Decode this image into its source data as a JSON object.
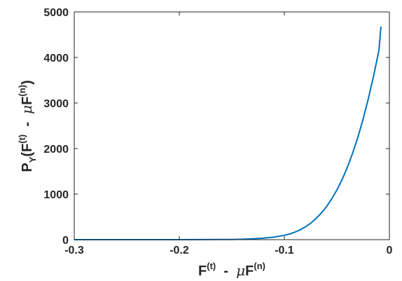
{
  "chart_data": {
    "type": "line",
    "title": "",
    "xlabel": "F(t)  -  μF(n)",
    "ylabel": "PY(F(t)  -  μF(n))",
    "xlim": [
      -0.3,
      0
    ],
    "ylim": [
      0,
      5000
    ],
    "xticks": [
      -0.3,
      -0.2,
      -0.1,
      0
    ],
    "xtick_labels": [
      "-0.3",
      "-0.2",
      "-0.1",
      "0"
    ],
    "yticks": [
      0,
      1000,
      2000,
      3000,
      4000,
      5000
    ],
    "ytick_labels": [
      "0",
      "1000",
      "2000",
      "3000",
      "4000",
      "5000"
    ],
    "grid": false,
    "legend": false,
    "line_color": "#0072BD",
    "series": [
      {
        "x": [
          -0.3,
          -0.25,
          -0.2,
          -0.18,
          -0.16,
          -0.15,
          -0.14,
          -0.13,
          -0.12,
          -0.11,
          -0.1,
          -0.095,
          -0.09,
          -0.085,
          -0.08,
          -0.075,
          -0.07,
          -0.065,
          -0.06,
          -0.055,
          -0.05,
          -0.045,
          -0.04,
          -0.035,
          -0.03,
          -0.025,
          -0.02,
          -0.015,
          -0.01,
          -0.008
        ],
        "y": [
          0,
          0,
          0,
          1,
          3,
          5,
          10,
          18,
          32,
          55,
          95,
          125,
          165,
          215,
          280,
          360,
          460,
          580,
          720,
          890,
          1090,
          1320,
          1590,
          1900,
          2250,
          2650,
          3100,
          3600,
          4150,
          4680
        ]
      }
    ]
  },
  "labels": {
    "x_main_1": "F",
    "x_sup_1": "(t)",
    "x_dash": "  -  ",
    "x_mu": "μ",
    "x_main_2": "F",
    "x_sup_2": "(n)",
    "y_p": "P",
    "y_sub": "Y",
    "y_open": "(F",
    "y_sup_1": "(t)",
    "y_dash": "  -  ",
    "y_mu": "μ",
    "y_f2": "F",
    "y_sup_2": "(n)",
    "y_close": ")"
  }
}
